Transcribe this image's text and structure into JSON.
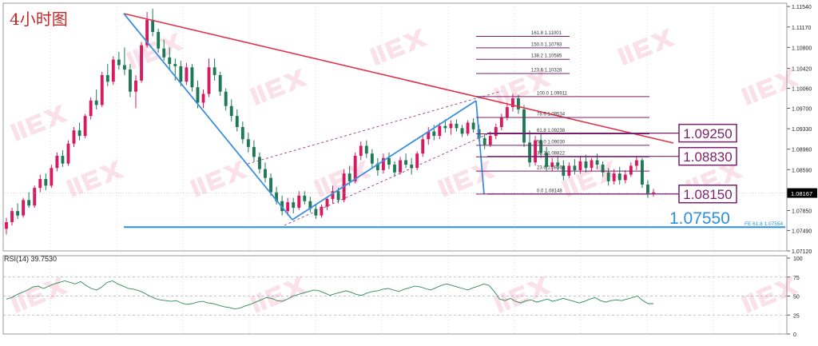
{
  "chart_data": [
    {
      "type": "candlestick",
      "title": "4小时图",
      "symbol_timeframe": "4小时图",
      "ylim": [
        1.0712,
        1.116
      ],
      "yticks": [
        "1.11540",
        "1.11170",
        "1.10800",
        "1.10420",
        "1.10060",
        "1.09700",
        "1.09330",
        "1.08960",
        "1.08590",
        "1.08220",
        "1.07850",
        "1.07490",
        "1.07120"
      ],
      "current_price": "1.08167",
      "line_colors": {
        "bull_candle": "#d81b60",
        "bear_candle": "#1e7a55",
        "trendline": "#e0324a",
        "channel_line": "#3d8fe0",
        "channel_dash": "#a03a7a",
        "fib": "#7a1f6e",
        "support": "#2d8fe0"
      },
      "fibonacci": [
        {
          "label": "161.8",
          "value": "1.11001",
          "price": 1.11001
        },
        {
          "label": "150.0",
          "value": "1.10793",
          "price": 1.10793
        },
        {
          "label": "138.2",
          "value": "1.10585",
          "price": 1.10585
        },
        {
          "label": "123.6",
          "value": "1.10328",
          "price": 1.10328
        },
        {
          "label": "100.0",
          "value": "1.09911",
          "price": 1.09911
        },
        {
          "label": "78.6",
          "value": "1.09534",
          "price": 1.09534
        },
        {
          "label": "61.8",
          "value": "1.09238",
          "price": 1.09238
        },
        {
          "label": "50.0",
          "value": "1.09030",
          "price": 1.0903
        },
        {
          "label": "38.2",
          "value": "1.08822",
          "price": 1.08822
        },
        {
          "label": "23.6",
          "value": "1.08564",
          "price": 1.08564
        },
        {
          "label": "0.0",
          "value": "1.08148",
          "price": 1.08148
        }
      ],
      "fe_label": "FE 61.8",
      "fe_value": "1.07554",
      "key_levels": [
        {
          "label": "1.09250",
          "price": 1.0925
        },
        {
          "label": "1.08830",
          "price": 1.0883
        },
        {
          "label": "1.08150",
          "price": 1.0815
        }
      ],
      "support_level": {
        "label": "1.07550",
        "price": 1.0755
      },
      "candles": [
        [
          1.0752,
          1.0772,
          1.0742,
          1.0764
        ],
        [
          1.0764,
          1.079,
          1.0758,
          1.0784
        ],
        [
          1.0784,
          1.0798,
          1.077,
          1.0776
        ],
        [
          1.0776,
          1.0808,
          1.0772,
          1.0804
        ],
        [
          1.0804,
          1.0818,
          1.079,
          1.0794
        ],
        [
          1.0794,
          1.083,
          1.079,
          1.0826
        ],
        [
          1.0826,
          1.085,
          1.0818,
          1.0842
        ],
        [
          1.0842,
          1.0852,
          1.0822,
          1.083
        ],
        [
          1.083,
          1.0868,
          1.0826,
          1.0862
        ],
        [
          1.0862,
          1.089,
          1.0856,
          1.0884
        ],
        [
          1.0884,
          1.0894,
          1.0864,
          1.087
        ],
        [
          1.087,
          1.0912,
          1.0866,
          1.0906
        ],
        [
          1.0906,
          1.0936,
          1.09,
          1.093
        ],
        [
          1.093,
          1.0944,
          1.0912,
          1.092
        ],
        [
          1.092,
          1.096,
          1.0916,
          1.0956
        ],
        [
          1.0956,
          1.099,
          1.095,
          1.0984
        ],
        [
          1.0984,
          1.1004,
          1.0968,
          1.0976
        ],
        [
          1.0976,
          1.1036,
          1.0972,
          1.103
        ],
        [
          1.103,
          1.105,
          1.101,
          1.1018
        ],
        [
          1.1018,
          1.1064,
          1.1012,
          1.1058
        ],
        [
          1.1058,
          1.1072,
          1.104,
          1.1048
        ],
        [
          1.1048,
          1.108,
          1.103,
          1.104
        ],
        [
          1.104,
          1.105,
          1.099,
          1.1
        ],
        [
          1.1,
          1.103,
          1.097,
          1.102
        ],
        [
          1.102,
          1.109,
          1.1016,
          1.1084
        ],
        [
          1.1084,
          1.1144,
          1.108,
          1.113
        ],
        [
          1.113,
          1.115,
          1.11,
          1.1108
        ],
        [
          1.1108,
          1.1114,
          1.107,
          1.1078
        ],
        [
          1.1078,
          1.1094,
          1.1056,
          1.1062
        ],
        [
          1.1062,
          1.108,
          1.104,
          1.105
        ],
        [
          1.105,
          1.106,
          1.102,
          1.1046
        ],
        [
          1.1046,
          1.1056,
          1.101,
          1.1018
        ],
        [
          1.1018,
          1.1052,
          1.1012,
          1.1044
        ],
        [
          1.1044,
          1.105,
          1.1,
          1.1008
        ],
        [
          1.1008,
          1.102,
          1.097,
          1.098
        ],
        [
          1.098,
          1.1004,
          1.097,
          1.0996
        ],
        [
          1.0996,
          1.106,
          1.099,
          1.1044
        ],
        [
          1.1044,
          1.106,
          1.102,
          1.103
        ],
        [
          1.103,
          1.1036,
          1.0992,
          1.1
        ],
        [
          1.1,
          1.1006,
          1.0966,
          1.0974
        ],
        [
          1.0974,
          1.0986,
          1.0946,
          1.0956
        ],
        [
          1.0956,
          1.0968,
          1.0928,
          1.0936
        ],
        [
          1.0936,
          1.0946,
          1.0906,
          1.0914
        ],
        [
          1.0914,
          1.0926,
          1.089,
          1.09
        ],
        [
          1.09,
          1.0912,
          1.0874,
          1.0882
        ],
        [
          1.0882,
          1.089,
          1.0852,
          1.086
        ],
        [
          1.086,
          1.0872,
          1.0836,
          1.0844
        ],
        [
          1.0844,
          1.0852,
          1.0812,
          1.0818
        ],
        [
          1.0818,
          1.0828,
          1.0796,
          1.0802
        ],
        [
          1.0802,
          1.0812,
          1.0776,
          1.0784
        ],
        [
          1.0784,
          1.0808,
          1.0776,
          1.08
        ],
        [
          1.08,
          1.0808,
          1.078,
          1.079
        ],
        [
          1.079,
          1.082,
          1.0786,
          1.0812
        ],
        [
          1.0812,
          1.082,
          1.0796,
          1.0802
        ],
        [
          1.0802,
          1.081,
          1.0782,
          1.0788
        ],
        [
          1.0788,
          1.0796,
          1.077,
          1.0776
        ],
        [
          1.0776,
          1.0796,
          1.0772,
          1.0792
        ],
        [
          1.0792,
          1.081,
          1.0786,
          1.0806
        ],
        [
          1.0806,
          1.083,
          1.0798,
          1.082
        ],
        [
          1.082,
          1.0826,
          1.0798,
          1.0804
        ],
        [
          1.0804,
          1.086,
          1.08,
          1.0852
        ],
        [
          1.0852,
          1.0866,
          1.083,
          1.0838
        ],
        [
          1.0838,
          1.089,
          1.0834,
          1.0884
        ],
        [
          1.0884,
          1.091,
          1.0876,
          1.0902
        ],
        [
          1.0902,
          1.0912,
          1.088,
          1.0888
        ],
        [
          1.0888,
          1.0896,
          1.0862,
          1.087
        ],
        [
          1.087,
          1.088,
          1.0848,
          1.0858
        ],
        [
          1.0858,
          1.0888,
          1.0852,
          1.088
        ],
        [
          1.088,
          1.089,
          1.086,
          1.0868
        ],
        [
          1.0868,
          1.0874,
          1.0846,
          1.0854
        ],
        [
          1.0854,
          1.0882,
          1.085,
          1.0876
        ],
        [
          1.0876,
          1.0888,
          1.0862,
          1.0868
        ],
        [
          1.0868,
          1.088,
          1.085,
          1.0862
        ],
        [
          1.0862,
          1.0892,
          1.0858,
          1.0888
        ],
        [
          1.0888,
          1.092,
          1.0882,
          1.0914
        ],
        [
          1.0914,
          1.0936,
          1.0904,
          1.0928
        ],
        [
          1.0928,
          1.094,
          1.0912,
          1.092
        ],
        [
          1.092,
          1.0944,
          1.0914,
          1.0938
        ],
        [
          1.0938,
          1.095,
          1.0926,
          1.0934
        ],
        [
          1.0934,
          1.0948,
          1.0922,
          1.0942
        ],
        [
          1.0942,
          1.095,
          1.0928,
          1.0934
        ],
        [
          1.0934,
          1.094,
          1.0918,
          1.0924
        ],
        [
          1.0924,
          1.0948,
          1.092,
          1.0944
        ],
        [
          1.0944,
          1.0952,
          1.0926,
          1.0932
        ],
        [
          1.0932,
          1.094,
          1.091,
          1.0916
        ],
        [
          1.0916,
          1.0924,
          1.0896,
          1.0904
        ],
        [
          1.0904,
          1.0928,
          1.09,
          1.092
        ],
        [
          1.092,
          1.0942,
          1.0914,
          1.0936
        ],
        [
          1.0936,
          1.096,
          1.093,
          1.0954
        ],
        [
          1.0954,
          1.098,
          1.0948,
          1.0972
        ],
        [
          1.0972,
          1.0996,
          1.0964,
          1.0988
        ],
        [
          1.0988,
          1.0994,
          1.096,
          1.0968
        ],
        [
          1.0968,
          1.0976,
          1.09,
          1.0908
        ],
        [
          1.0908,
          1.093,
          1.0864,
          1.0872
        ],
        [
          1.0872,
          1.092,
          1.0866,
          1.0912
        ],
        [
          1.0912,
          1.0924,
          1.088,
          1.089
        ],
        [
          1.089,
          1.09,
          1.0856,
          1.0864
        ],
        [
          1.0864,
          1.088,
          1.0856,
          1.0872
        ],
        [
          1.0872,
          1.0884,
          1.0858,
          1.0866
        ],
        [
          1.0866,
          1.0876,
          1.084,
          1.0848
        ],
        [
          1.0848,
          1.0872,
          1.0844,
          1.0866
        ],
        [
          1.0866,
          1.0878,
          1.085,
          1.0858
        ],
        [
          1.0858,
          1.0882,
          1.0852,
          1.0874
        ],
        [
          1.0874,
          1.0886,
          1.0854,
          1.0862
        ],
        [
          1.0862,
          1.088,
          1.0856,
          1.0876
        ],
        [
          1.0876,
          1.0888,
          1.086,
          1.0868
        ],
        [
          1.0868,
          1.0874,
          1.0846,
          1.0854
        ],
        [
          1.0854,
          1.0862,
          1.083,
          1.0838
        ],
        [
          1.0838,
          1.086,
          1.0832,
          1.0852
        ],
        [
          1.0852,
          1.0864,
          1.0832,
          1.084
        ],
        [
          1.084,
          1.0858,
          1.0834,
          1.085
        ],
        [
          1.085,
          1.0872,
          1.0846,
          1.0866
        ],
        [
          1.0866,
          1.0884,
          1.0858,
          1.0876
        ],
        [
          1.0876,
          1.088,
          1.0826,
          1.0832
        ],
        [
          1.0832,
          1.084,
          1.0808,
          1.0816
        ],
        [
          1.0816,
          1.0824,
          1.081,
          1.0818
        ]
      ]
    },
    {
      "type": "line",
      "title": "RSI(14) 39.7530",
      "ylim": [
        0,
        100
      ],
      "yticks": [
        "100",
        "75",
        "50",
        "25",
        "0"
      ],
      "series": [
        {
          "name": "RSI(14)",
          "values": [
            46,
            48,
            52,
            55,
            58,
            62,
            63,
            60,
            63,
            66,
            68,
            70,
            68,
            66,
            69,
            64,
            60,
            58,
            62,
            68,
            70,
            66,
            63,
            60,
            59,
            57,
            54,
            50,
            47,
            45,
            44,
            43,
            44,
            41,
            39,
            40,
            42,
            43,
            41,
            40,
            38,
            36,
            35,
            33,
            34,
            37,
            39,
            42,
            45,
            48,
            47,
            44,
            43,
            46,
            50,
            52,
            54,
            56,
            58,
            57,
            54,
            51,
            53,
            55,
            57,
            55,
            52,
            51,
            54,
            56,
            57,
            59,
            60,
            58,
            56,
            59,
            61,
            63,
            62,
            60,
            58,
            61,
            64,
            66,
            64,
            62,
            60,
            58,
            61,
            63,
            66,
            64,
            56,
            46,
            44,
            47,
            43,
            41,
            44,
            45,
            42,
            44,
            46,
            43,
            45,
            47,
            45,
            43,
            41,
            43,
            46,
            48,
            44,
            42,
            44,
            45,
            44,
            46,
            48,
            50,
            44,
            40,
            40
          ]
        }
      ]
    }
  ]
}
